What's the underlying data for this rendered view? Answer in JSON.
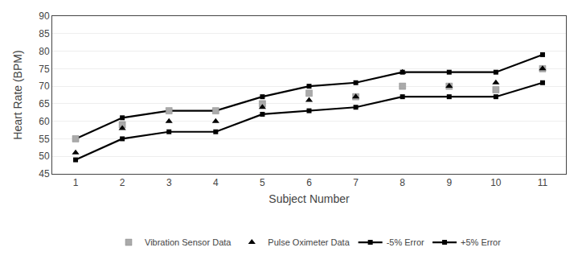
{
  "chart_data": {
    "type": "scatter",
    "x": [
      1,
      2,
      3,
      4,
      5,
      6,
      7,
      8,
      9,
      10,
      11
    ],
    "series": [
      {
        "name": "Vibration Sensor Data",
        "type": "scatter",
        "marker": "square",
        "color": "#aaaaaa",
        "values": [
          55,
          59,
          63,
          63,
          65,
          68,
          67,
          70,
          70,
          69,
          75
        ]
      },
      {
        "name": "Pulse Oximeter Data",
        "type": "scatter",
        "marker": "triangle-up",
        "color": "#000000",
        "values": [
          51,
          58,
          60,
          60,
          64,
          66,
          67,
          74,
          70,
          71,
          75
        ]
      },
      {
        "name": "-5% Error",
        "type": "line",
        "marker": "square",
        "line_style": "solid",
        "color": "#000000",
        "values": [
          49,
          55,
          57,
          57,
          62,
          63,
          64,
          67,
          67,
          67,
          71
        ]
      },
      {
        "name": "+5% Error",
        "type": "line",
        "marker": "square",
        "line_style": "solid",
        "color": "#000000",
        "values": [
          55,
          61,
          63,
          63,
          67,
          70,
          71,
          74,
          74,
          74,
          79
        ]
      }
    ],
    "xlabel": "Subject Number",
    "ylabel": "Heart Rate (BPM)",
    "xlim": [
      0.5,
      11.5
    ],
    "xticks": [
      1,
      2,
      3,
      4,
      5,
      6,
      7,
      8,
      9,
      10,
      11
    ],
    "ylim": [
      45,
      90
    ],
    "yticks": [
      45,
      50,
      55,
      60,
      65,
      70,
      75,
      80,
      85,
      90
    ],
    "grid": "y",
    "legend": "bottom"
  }
}
